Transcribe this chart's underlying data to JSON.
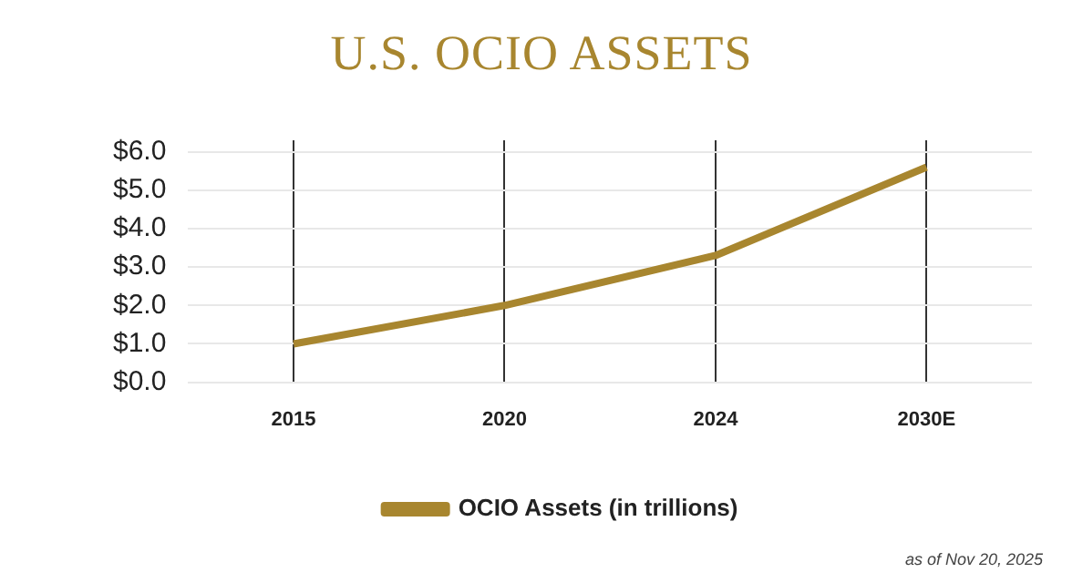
{
  "chart_data": {
    "type": "line",
    "title": "U.S. OCIO ASSETS",
    "categories": [
      "2015",
      "2020",
      "2024",
      "2030E"
    ],
    "series": [
      {
        "name": "OCIO Assets (in trillions)",
        "color": "#a8862f",
        "values": [
          1.0,
          2.0,
          3.3,
          5.6
        ]
      }
    ],
    "ylim": [
      0,
      6.3
    ],
    "yticks": [
      {
        "value": 0,
        "label": "$0.0"
      },
      {
        "value": 1,
        "label": "$1.0"
      },
      {
        "value": 2,
        "label": "$2.0"
      },
      {
        "value": 3,
        "label": "$3.0"
      },
      {
        "value": 4,
        "label": "$4.0"
      },
      {
        "value": 5,
        "label": "$5.0"
      },
      {
        "value": 6,
        "label": "$6.0"
      }
    ],
    "grid": true,
    "legend": "bottom",
    "marker": "none",
    "line_style": "solid",
    "annotations": [
      "as of Nov 20, 2025"
    ]
  }
}
